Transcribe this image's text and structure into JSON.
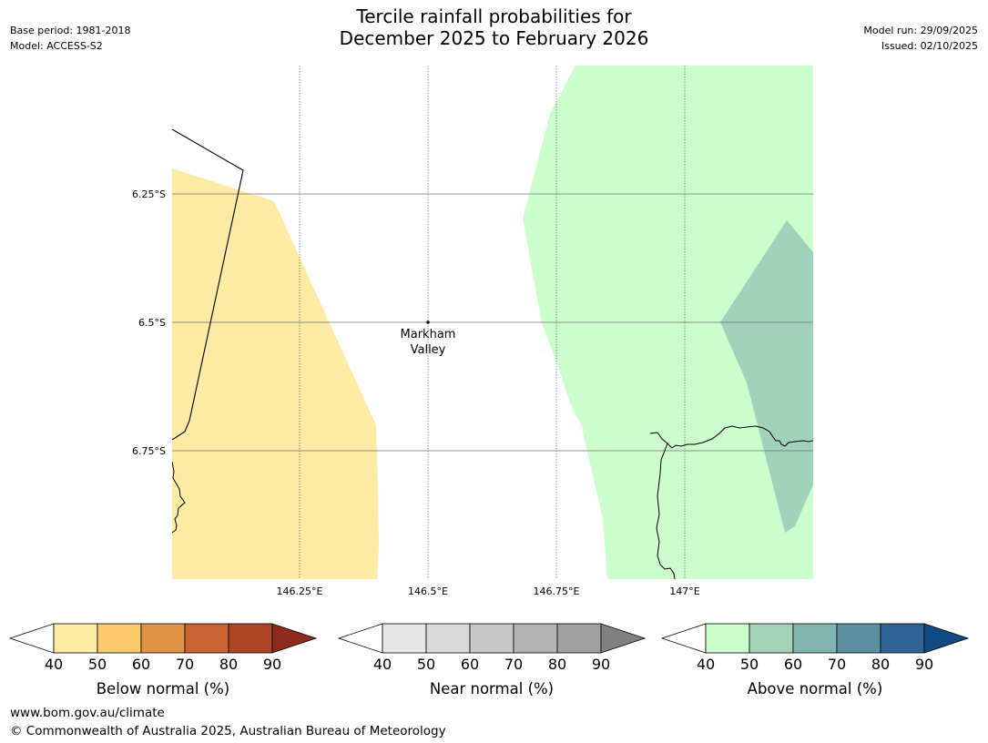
{
  "header": {
    "title_line1": "Tercile rainfall probabilities for",
    "title_line2": "December 2025 to February 2026",
    "base_period": "Base period: 1981-2018",
    "model": "Model: ACCESS-S2",
    "model_run": "Model run: 29/09/2025",
    "issued": "Issued: 02/10/2025"
  },
  "map": {
    "lat_labels": [
      "6.25°S",
      "6.5°S",
      "6.75°S"
    ],
    "lon_labels": [
      "146.25°E",
      "146.5°E",
      "146.75°E",
      "147°E"
    ],
    "place": {
      "name_line1": "Markham",
      "name_line2": "Valley"
    },
    "region_probabilities": [
      {
        "category": "Below normal",
        "band": "40-50"
      },
      {
        "category": "Above normal",
        "band": "40-50"
      },
      {
        "category": "Above normal",
        "band": "50-60"
      }
    ]
  },
  "colorbars": [
    {
      "label": "Below normal (%)",
      "ticks": [
        "40",
        "50",
        "60",
        "70",
        "80",
        "90"
      ],
      "colors": [
        "#fdeaa3",
        "#fdca6a",
        "#e09444",
        "#cc6333",
        "#ad4526",
        "#8e2a1a"
      ]
    },
    {
      "label": "Near normal (%)",
      "ticks": [
        "40",
        "50",
        "60",
        "70",
        "80",
        "90"
      ],
      "colors": [
        "#e6e6e6",
        "#d9d9d9",
        "#c8c8c8",
        "#b4b4b4",
        "#a0a0a0",
        "#808080"
      ]
    },
    {
      "label": "Above normal (%)",
      "ticks": [
        "40",
        "50",
        "60",
        "70",
        "80",
        "90"
      ],
      "colors": [
        "#ccfdcc",
        "#a4d4b8",
        "#7fb5af",
        "#5a8fa0",
        "#2f6395",
        "#104a82"
      ]
    }
  ],
  "footer": {
    "url": "www.bom.gov.au/climate",
    "copyright": "© Commonwealth of Australia 2025, Australian Bureau of Meteorology"
  }
}
